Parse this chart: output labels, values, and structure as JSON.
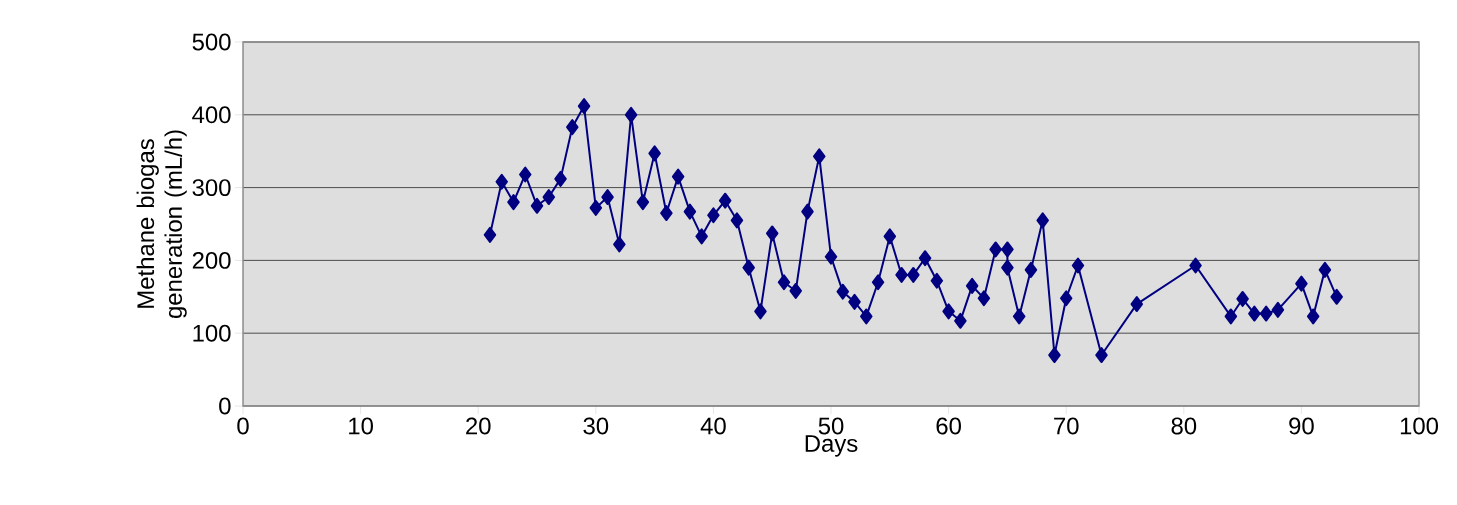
{
  "chart_data": {
    "type": "line",
    "xlabel": "Days",
    "ylabel": "Methane biogas generation (mL/h)",
    "x": [
      21,
      22,
      23,
      24,
      25,
      26,
      27,
      28,
      29,
      30,
      31,
      32,
      33,
      34,
      35,
      36,
      37,
      38,
      39,
      40,
      41,
      42,
      43,
      44,
      45,
      46,
      47,
      48,
      49,
      50,
      51,
      52,
      53,
      54,
      55,
      56,
      57,
      58,
      59,
      60,
      61,
      62,
      63,
      64,
      65,
      65,
      66,
      67,
      68,
      69,
      70,
      71,
      73,
      76,
      81,
      84,
      85,
      86,
      87,
      88,
      90,
      91,
      92,
      93
    ],
    "values": [
      235,
      308,
      280,
      318,
      275,
      287,
      312,
      383,
      412,
      272,
      287,
      222,
      400,
      280,
      347,
      265,
      315,
      267,
      233,
      262,
      282,
      255,
      190,
      130,
      237,
      170,
      158,
      267,
      343,
      205,
      157,
      143,
      123,
      170,
      233,
      180,
      180,
      203,
      172,
      130,
      117,
      165,
      148,
      215,
      215,
      190,
      123,
      187,
      255,
      70,
      148,
      193,
      70,
      140,
      193,
      123,
      147,
      127,
      127,
      132,
      168,
      123,
      187,
      150
    ],
    "color": "#000080",
    "marker": "diamond",
    "line_style": "solid",
    "grid": "y",
    "xlim": [
      0,
      100
    ],
    "ylim": [
      0,
      500
    ],
    "xticks": [
      0,
      10,
      20,
      30,
      40,
      50,
      60,
      70,
      80,
      90,
      100
    ],
    "yticks": [
      0,
      100,
      200,
      300,
      400,
      500
    ]
  }
}
